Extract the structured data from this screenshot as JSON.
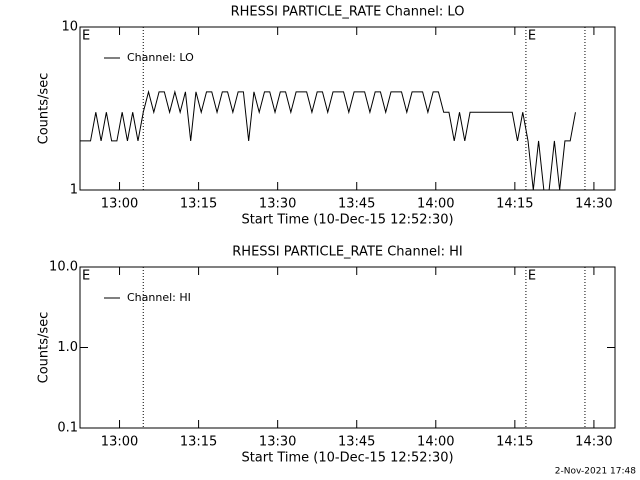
{
  "chart_data": [
    {
      "type": "line",
      "title": "RHESSI PARTICLE_RATE Channel: LO",
      "x_label": "Start Time (10-Dec-15 12:52:30)",
      "y_label": "Counts/sec",
      "log_y": true,
      "xlim": [
        0,
        101.5
      ],
      "ylim": [
        1,
        10
      ],
      "yticks": [
        1,
        10
      ],
      "xticks": [
        {
          "value": 7.5,
          "label": "13:00"
        },
        {
          "value": 22.5,
          "label": "13:15"
        },
        {
          "value": 37.5,
          "label": "13:30"
        },
        {
          "value": 52.5,
          "label": "13:45"
        },
        {
          "value": 67.5,
          "label": "14:00"
        },
        {
          "value": 82.5,
          "label": "14:15"
        },
        {
          "value": 97.5,
          "label": "14:30"
        }
      ],
      "vlines": [
        12,
        84.6,
        95.8
      ],
      "annotations": [
        {
          "text": "E",
          "x": 0
        },
        {
          "text": "E",
          "x": 84.6
        }
      ],
      "x": [
        0,
        1,
        2,
        3,
        4,
        5,
        6,
        7,
        8,
        9,
        10,
        11,
        12,
        13,
        14,
        15,
        16,
        17,
        18,
        19,
        20,
        21,
        22,
        23,
        24,
        25,
        26,
        27,
        28,
        29,
        30,
        31,
        32,
        33,
        34,
        35,
        36,
        37,
        38,
        39,
        40,
        41,
        42,
        43,
        44,
        45,
        46,
        47,
        48,
        49,
        50,
        51,
        52,
        53,
        54,
        55,
        56,
        57,
        58,
        59,
        60,
        61,
        62,
        63,
        64,
        65,
        66,
        67,
        68,
        69,
        70,
        71,
        72,
        73,
        74,
        75,
        76,
        77,
        78,
        79,
        80,
        81,
        82,
        83,
        84,
        85,
        86,
        87,
        88,
        89,
        90,
        91,
        92,
        93,
        94
      ],
      "series": [
        {
          "name": "Channel: LO",
          "color": "#000000",
          "values": [
            2,
            2,
            2,
            3,
            2,
            3,
            2,
            2,
            3,
            2,
            3,
            2,
            3,
            4,
            3,
            4,
            4,
            3,
            4,
            3,
            4,
            2,
            4,
            3,
            4,
            4,
            3,
            4,
            4,
            3,
            4,
            4,
            2,
            4,
            3,
            4,
            4,
            3,
            4,
            4,
            3,
            4,
            4,
            4,
            3,
            4,
            4,
            3,
            4,
            4,
            4,
            3,
            4,
            4,
            4,
            3,
            4,
            4,
            3,
            4,
            4,
            4,
            3,
            4,
            4,
            4,
            3,
            4,
            4,
            3,
            3,
            2,
            3,
            2,
            3,
            3,
            3,
            3,
            3,
            3,
            3,
            3,
            3,
            2,
            3,
            2,
            1,
            2,
            1,
            1,
            2,
            1,
            2,
            2,
            3
          ]
        }
      ]
    },
    {
      "type": "line",
      "title": "RHESSI PARTICLE_RATE Channel: HI",
      "x_label": "Start Time (10-Dec-15 12:52:30)",
      "y_label": "Counts/sec",
      "log_y": true,
      "xlim": [
        0,
        101.5
      ],
      "ylim": [
        0.1,
        10
      ],
      "yticks": [
        0.1,
        {
          "value": 1,
          "label": "1.0"
        },
        {
          "value": 10,
          "label": "10.0"
        }
      ],
      "xticks": [
        {
          "value": 7.5,
          "label": "13:00"
        },
        {
          "value": 22.5,
          "label": "13:15"
        },
        {
          "value": 37.5,
          "label": "13:30"
        },
        {
          "value": 52.5,
          "label": "13:45"
        },
        {
          "value": 67.5,
          "label": "14:00"
        },
        {
          "value": 82.5,
          "label": "14:15"
        },
        {
          "value": 97.5,
          "label": "14:30"
        }
      ],
      "vlines": [
        12,
        84.6,
        95.8
      ],
      "annotations": [
        {
          "text": "E",
          "x": 0
        },
        {
          "text": "E",
          "x": 84.6
        }
      ],
      "x": [],
      "series": [
        {
          "name": "Channel: HI",
          "color": "#000000",
          "values": []
        }
      ]
    }
  ],
  "footer": "2-Nov-2021 17:48"
}
